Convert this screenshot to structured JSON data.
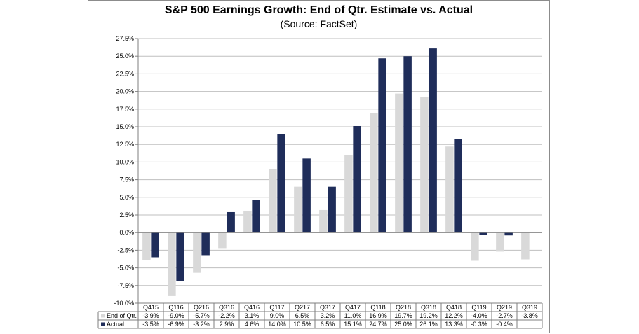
{
  "chart_data": {
    "type": "bar",
    "title": "S&P 500 Earnings Growth: End of Qtr. Estimate vs. Actual",
    "subtitle": "(Source: FactSet)",
    "ylim": [
      -10,
      27.5
    ],
    "ytick_step": 2.5,
    "yticks": [
      "27.5%",
      "25.0%",
      "22.5%",
      "20.0%",
      "17.5%",
      "15.0%",
      "12.5%",
      "10.0%",
      "7.5%",
      "5.0%",
      "2.5%",
      "0.0%",
      "-2.5%",
      "-5.0%",
      "-7.5%",
      "-10.0%"
    ],
    "categories": [
      "Q415",
      "Q116",
      "Q216",
      "Q316",
      "Q416",
      "Q117",
      "Q217",
      "Q317",
      "Q417",
      "Q118",
      "Q218",
      "Q318",
      "Q418",
      "Q119",
      "Q219",
      "Q319"
    ],
    "series": [
      {
        "name": "End of Qtr.",
        "color": "#d9d9d9",
        "values": [
          -3.9,
          -9.0,
          -5.7,
          -2.2,
          3.1,
          9.0,
          6.5,
          3.2,
          11.0,
          16.9,
          19.7,
          19.2,
          12.2,
          -4.0,
          -2.7,
          -3.8
        ],
        "labels": [
          "-3.9%",
          "-9.0%",
          "-5.7%",
          "-2.2%",
          "3.1%",
          "9.0%",
          "6.5%",
          "3.2%",
          "11.0%",
          "16.9%",
          "19.7%",
          "19.2%",
          "12.2%",
          "-4.0%",
          "-2.7%",
          "-3.8%"
        ]
      },
      {
        "name": "Actual",
        "color": "#1f2d5a",
        "values": [
          -3.5,
          -6.9,
          -3.2,
          2.9,
          4.6,
          14.0,
          10.5,
          6.5,
          15.1,
          24.7,
          25.0,
          26.1,
          13.3,
          -0.3,
          -0.4,
          null
        ],
        "labels": [
          "-3.5%",
          "-6.9%",
          "-3.2%",
          "2.9%",
          "4.6%",
          "14.0%",
          "10.5%",
          "6.5%",
          "15.1%",
          "24.7%",
          "25.0%",
          "26.1%",
          "13.3%",
          "-0.3%",
          "-0.4%",
          ""
        ]
      }
    ]
  }
}
